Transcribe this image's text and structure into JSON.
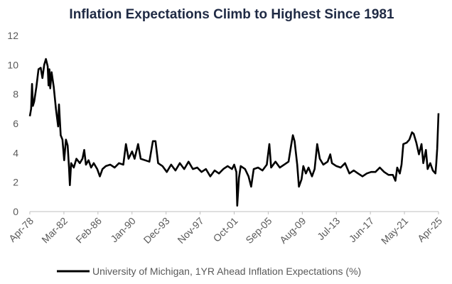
{
  "chart_data": {
    "type": "line",
    "title": "Inflation Expectations Climb to Highest Since 1981",
    "x": [
      1978.25,
      1978.4,
      1978.5,
      1978.6,
      1978.75,
      1979.0,
      1979.25,
      1979.5,
      1979.7,
      1979.9,
      1980.1,
      1980.3,
      1980.4,
      1980.5,
      1980.6,
      1980.75,
      1981.0,
      1981.25,
      1981.5,
      1981.6,
      1981.8,
      1982.0,
      1982.2,
      1982.4,
      1982.6,
      1982.75,
      1982.85,
      1983.0,
      1983.3,
      1983.6,
      1984.0,
      1984.3,
      1984.5,
      1984.7,
      1985.0,
      1985.3,
      1985.6,
      1986.0,
      1986.3,
      1986.6,
      1987.0,
      1987.5,
      1988.0,
      1988.5,
      1989.0,
      1989.3,
      1989.6,
      1990.0,
      1990.3,
      1990.7,
      1991.0,
      1991.5,
      1992.0,
      1992.4,
      1992.7,
      1993.0,
      1993.5,
      1994.0,
      1994.5,
      1995.0,
      1995.5,
      1996.0,
      1996.5,
      1997.0,
      1997.5,
      1998.0,
      1998.5,
      1999.0,
      1999.5,
      2000.0,
      2000.5,
      2001.0,
      2001.5,
      2001.75,
      2002.0,
      2002.1,
      2002.3,
      2002.5,
      2003.0,
      2003.4,
      2003.7,
      2004.0,
      2004.5,
      2005.0,
      2005.5,
      2005.8,
      2006.0,
      2006.5,
      2007.0,
      2007.5,
      2008.0,
      2008.3,
      2008.5,
      2008.7,
      2009.0,
      2009.2,
      2009.5,
      2009.7,
      2010.0,
      2010.3,
      2010.7,
      2011.0,
      2011.3,
      2011.6,
      2012.0,
      2012.5,
      2012.8,
      2013.0,
      2013.5,
      2014.0,
      2014.5,
      2015.0,
      2015.5,
      2016.0,
      2016.5,
      2017.0,
      2017.5,
      2018.0,
      2018.5,
      2019.0,
      2019.5,
      2020.0,
      2020.3,
      2020.5,
      2020.8,
      2021.0,
      2021.2,
      2021.6,
      2021.9,
      2022.2,
      2022.4,
      2022.7,
      2023.0,
      2023.3,
      2023.5,
      2023.8,
      2024.0,
      2024.3,
      2024.6,
      2024.9,
      2025.0,
      2025.1,
      2025.25
    ],
    "series": [
      {
        "name": "University of Michigan, 1YR Ahead Inflation Expectations (%)",
        "color": "#000000",
        "values": [
          6.5,
          7.0,
          8.7,
          7.2,
          7.5,
          8.5,
          9.7,
          9.8,
          9.1,
          10.0,
          10.4,
          9.9,
          8.6,
          9.7,
          8.4,
          9.5,
          8.5,
          7.0,
          5.8,
          7.3,
          5.2,
          4.9,
          3.5,
          4.9,
          4.5,
          3.0,
          1.8,
          3.3,
          3.0,
          3.6,
          3.3,
          3.6,
          4.2,
          3.2,
          3.5,
          3.0,
          3.3,
          2.9,
          2.4,
          2.9,
          3.1,
          3.2,
          3.0,
          3.3,
          3.2,
          4.6,
          3.6,
          4.1,
          3.6,
          4.6,
          3.6,
          3.5,
          3.4,
          4.8,
          4.8,
          3.3,
          3.1,
          2.7,
          3.2,
          2.8,
          3.3,
          2.9,
          3.4,
          2.9,
          3.0,
          2.7,
          2.9,
          2.4,
          2.8,
          2.6,
          2.9,
          3.1,
          2.9,
          3.2,
          2.7,
          0.4,
          2.3,
          3.1,
          2.9,
          2.4,
          1.7,
          2.9,
          3.0,
          2.8,
          3.2,
          4.6,
          3.0,
          3.4,
          3.0,
          3.2,
          3.4,
          4.5,
          5.2,
          4.8,
          3.2,
          1.7,
          2.2,
          3.1,
          2.6,
          3.0,
          2.4,
          2.9,
          4.6,
          3.6,
          3.2,
          3.4,
          3.9,
          3.3,
          3.1,
          3.0,
          3.3,
          2.6,
          2.8,
          2.6,
          2.4,
          2.6,
          2.7,
          2.7,
          3.0,
          2.7,
          2.5,
          2.5,
          2.1,
          3.0,
          2.6,
          3.2,
          4.6,
          4.7,
          4.9,
          5.4,
          5.3,
          4.7,
          3.9,
          4.6,
          3.3,
          4.2,
          2.9,
          3.3,
          2.8,
          2.6,
          3.3,
          4.3,
          6.7
        ]
      }
    ],
    "xlim": [
      1978.25,
      2025.25
    ],
    "xticks": [
      {
        "value": 1978.25,
        "label": "Apr-78"
      },
      {
        "value": 1982.167,
        "label": "Mar-82"
      },
      {
        "value": 1986.083,
        "label": "Feb-86"
      },
      {
        "value": 1990.0,
        "label": "Jan-90"
      },
      {
        "value": 1993.917,
        "label": "Dec-93"
      },
      {
        "value": 1997.833,
        "label": "Nov-97"
      },
      {
        "value": 2001.75,
        "label": "Oct-01"
      },
      {
        "value": 2005.667,
        "label": "Sep-05"
      },
      {
        "value": 2009.583,
        "label": "Aug-09"
      },
      {
        "value": 2013.5,
        "label": "Jul-13"
      },
      {
        "value": 2017.417,
        "label": "Jun-17"
      },
      {
        "value": 2021.333,
        "label": "May-21"
      },
      {
        "value": 2025.25,
        "label": "Apr-25"
      }
    ],
    "ylim": [
      0,
      12
    ],
    "yticks": [
      0,
      2,
      4,
      6,
      8,
      10,
      12
    ],
    "grid": false,
    "legend": "bottom"
  }
}
